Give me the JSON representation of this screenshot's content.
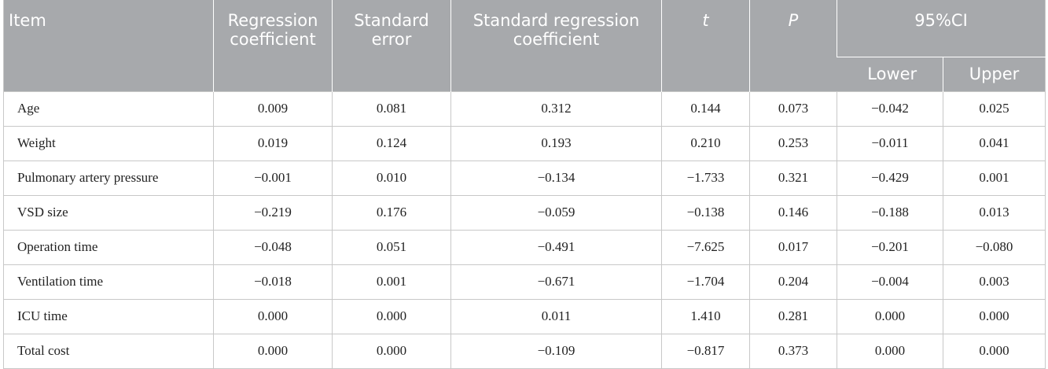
{
  "table": {
    "header": {
      "item": "Item",
      "reg_coef": "Regression coefficient",
      "std_err": "Standard error",
      "std_reg_coef": "Standard regression coefficient",
      "t": "t",
      "p": "P",
      "ci": "95%CI",
      "lower": "Lower",
      "upper": "Upper"
    },
    "rows": [
      {
        "item": "Age",
        "reg_coef": "0.009",
        "std_err": "0.081",
        "std_reg_coef": "0.312",
        "t": "0.144",
        "p": "0.073",
        "lower": "−0.042",
        "upper": "0.025"
      },
      {
        "item": "Weight",
        "reg_coef": "0.019",
        "std_err": "0.124",
        "std_reg_coef": "0.193",
        "t": "0.210",
        "p": "0.253",
        "lower": "−0.011",
        "upper": "0.041"
      },
      {
        "item": "Pulmonary artery pressure",
        "reg_coef": "−0.001",
        "std_err": "0.010",
        "std_reg_coef": "−0.134",
        "t": "−1.733",
        "p": "0.321",
        "lower": "−0.429",
        "upper": "0.001"
      },
      {
        "item": "VSD size",
        "reg_coef": "−0.219",
        "std_err": "0.176",
        "std_reg_coef": "−0.059",
        "t": "−0.138",
        "p": "0.146",
        "lower": "−0.188",
        "upper": "0.013"
      },
      {
        "item": "Operation time",
        "reg_coef": "−0.048",
        "std_err": "0.051",
        "std_reg_coef": "−0.491",
        "t": "−7.625",
        "p": "0.017",
        "lower": "−0.201",
        "upper": "−0.080"
      },
      {
        "item": "Ventilation time",
        "reg_coef": "−0.018",
        "std_err": "0.001",
        "std_reg_coef": "−0.671",
        "t": "−1.704",
        "p": "0.204",
        "lower": "−0.004",
        "upper": "0.003"
      },
      {
        "item": "ICU time",
        "reg_coef": "0.000",
        "std_err": "0.000",
        "std_reg_coef": "0.011",
        "t": "1.410",
        "p": "0.281",
        "lower": "0.000",
        "upper": "0.000"
      },
      {
        "item": "Total cost",
        "reg_coef": "0.000",
        "std_err": "0.000",
        "std_reg_coef": "−0.109",
        "t": "−0.817",
        "p": "0.373",
        "lower": "0.000",
        "upper": "0.000"
      }
    ]
  }
}
